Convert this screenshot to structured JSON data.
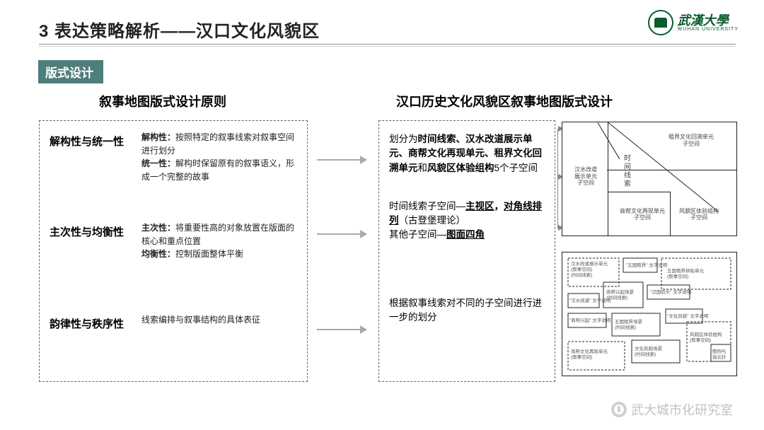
{
  "header": {
    "title": "3 表达策略解析——汉口文化风貌区",
    "uni_cn": "武漢大學",
    "uni_en": "WUHAN UNIVERSITY"
  },
  "badge": "版式设计",
  "columns": {
    "left_title": "叙事地图版式设计原则",
    "right_title": "汉口历史文化风貌区叙事地图版式设计"
  },
  "left_rows": [
    {
      "label": "解构性与统一性",
      "desc": "<b>解构性：</b>按照特定的叙事线索对叙事空间进行划分<br><b>统一性：</b>解构时保留原有的叙事语义，形成一个完整的故事"
    },
    {
      "label": "主次性与均衡性",
      "desc": "<b>主次性：</b>将重要性高的对象放置在版面的核心和重点位置<br><b>均衡性：</b>控制版面整体平衡"
    },
    {
      "label": "韵律性与秩序性",
      "desc": "线索编排与叙事结构的具体表征"
    }
  ],
  "right_blocks": [
    "划分为<b>时间线索、汉水改道展示单元、商帮文化再现单元、租界文化回溯单元</b>和<b>风貌区体验组构</b>5个子空间",
    "时间线索子空间—<b><span class='u'>主视区</span>，<span class='u'>对角线排列</span></b>（古登堡理论）<br>其他子空间—<b><span class='u'>图面四角</span></b>",
    "根据叙事线索对不同的子空间进行进一步的划分"
  ],
  "diag1_labels": {
    "a": "汉水改道<br>展示单元<br>子空间",
    "b": "租界文化回溯单元<br>子空间",
    "c": "商帮文化再现单元<br>子空间",
    "d": "风貌区体验组构<br>子空间",
    "e": "时<br>间<br>线<br>索"
  },
  "diag2_labels": {
    "a": "汉水改道展示单元<br>(叙事空间)<br>(时间线索)",
    "b": "\"五国租界\" 文字说明",
    "c": "五国租界拼贴单元<br>(叙事空间)",
    "d": "\"汉水改道\" 文字说明",
    "e": "商帮兴起场景<br>(时间线索)",
    "f": "\"汉国码头\" 文字说明",
    "g": "\"商帮兴起\" 文字说明",
    "h": "五国租界场景<br>(时间线索)",
    "i": "\"文化风貌\" 文字说明",
    "j": "文化风貌场景<br>(时间线索)",
    "k": "风貌区体验组构<br>(叙事空间)",
    "l": "商帮文化再现单元<br>(叙事空间)",
    "m": "图例与<br>指北针"
  },
  "watermark": "武大城市化研究室",
  "colors": {
    "accent": "#4d7e7b",
    "uni": "#0a5c2c",
    "arrow": "#aaaaaa"
  }
}
